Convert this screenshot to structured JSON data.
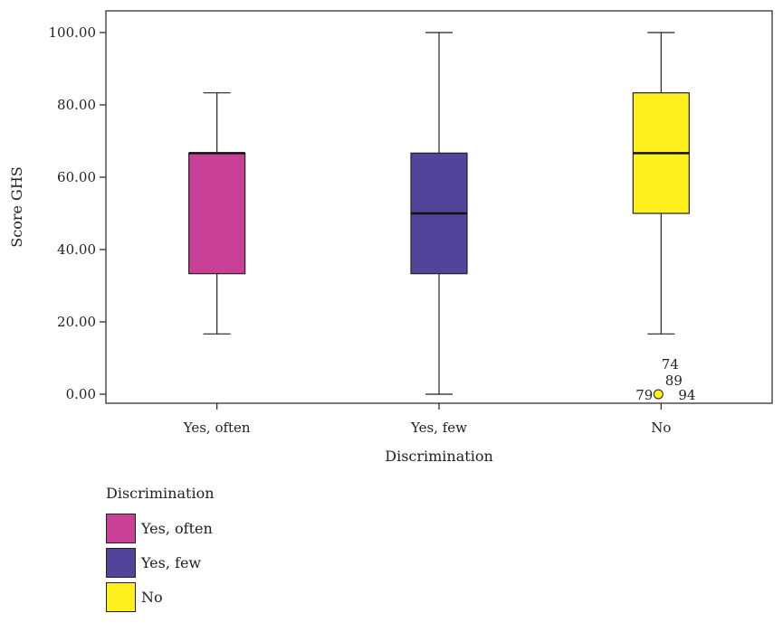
{
  "chart_data": {
    "type": "boxplot",
    "xlabel": "Discrimination",
    "ylabel": "Score GHS",
    "ylim": [
      -2.5,
      106
    ],
    "yticks": [
      "0.00",
      "20.00",
      "40.00",
      "60.00",
      "80.00",
      "100.00"
    ],
    "yticks_values": [
      0,
      20,
      40,
      60,
      80,
      100
    ],
    "categories": [
      "Yes, often",
      "Yes, few",
      "No"
    ],
    "series": [
      {
        "name": "Yes, often",
        "color": "#c84196",
        "min": 16.67,
        "q1": 33.33,
        "median": 66.67,
        "q3": 66.67,
        "max": 83.33,
        "outliers": []
      },
      {
        "name": "Yes, few",
        "color": "#52439b",
        "min": 0.0,
        "q1": 33.33,
        "median": 50.0,
        "q3": 66.67,
        "max": 100.0,
        "outliers": []
      },
      {
        "name": "No",
        "color": "#fef01c",
        "min": 16.67,
        "q1": 50.0,
        "median": 66.67,
        "q3": 83.33,
        "max": 100.0,
        "outliers": [
          {
            "value": 0.0,
            "labels": [
              "74",
              "89",
              "79",
              "94"
            ]
          }
        ]
      }
    ],
    "grid": false,
    "legend": {
      "title": "Discrimination",
      "placement": "bottom-left",
      "items": [
        "Yes, often",
        "Yes, few",
        "No"
      ]
    }
  }
}
